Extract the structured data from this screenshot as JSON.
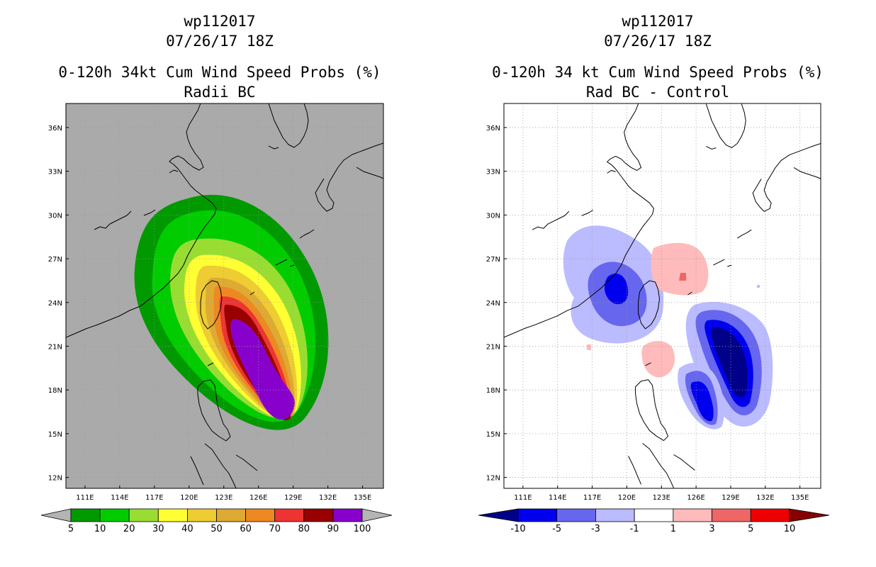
{
  "left_panel": {
    "storm_id": "wp112017",
    "datetime": "07/26/17 18Z",
    "product": "0-120h 34kt Cum Wind Speed Probs (%)",
    "subtitle": "Radii BC",
    "colorbar": {
      "labels": [
        "5",
        "10",
        "20",
        "30",
        "40",
        "50",
        "60",
        "70",
        "80",
        "90",
        "100"
      ],
      "colors": [
        "#009900",
        "#00cc00",
        "#99dd33",
        "#ffff33",
        "#eecc33",
        "#ddaa33",
        "#ee8822",
        "#ee3333",
        "#990000",
        "#8800cc"
      ],
      "under_color": "#b4b4b4",
      "over_color": "#b4b4b4"
    }
  },
  "right_panel": {
    "storm_id": "wp112017",
    "datetime": "07/26/17 18Z",
    "product": "0-120h 34 kt Cum Wind Speed Probs (%)",
    "subtitle": "Rad BC - Control",
    "colorbar": {
      "labels": [
        "-10",
        "-5",
        "-3",
        "-1",
        "1",
        "3",
        "5",
        "10"
      ],
      "colors": [
        "#0000ee",
        "#6666ee",
        "#bbbbff",
        "#ffffff",
        "#ffbbbb",
        "#ee6666",
        "#ee0000"
      ],
      "under_color": "#000088",
      "over_color": "#880000"
    }
  },
  "map": {
    "lon_labels": [
      "111E",
      "114E",
      "117E",
      "120E",
      "123E",
      "126E",
      "129E",
      "132E",
      "135E"
    ],
    "lat_labels": [
      "36N",
      "33N",
      "30N",
      "27N",
      "24N",
      "21N",
      "18N",
      "15N",
      "12N"
    ],
    "background_color": "#aaaaaa"
  }
}
